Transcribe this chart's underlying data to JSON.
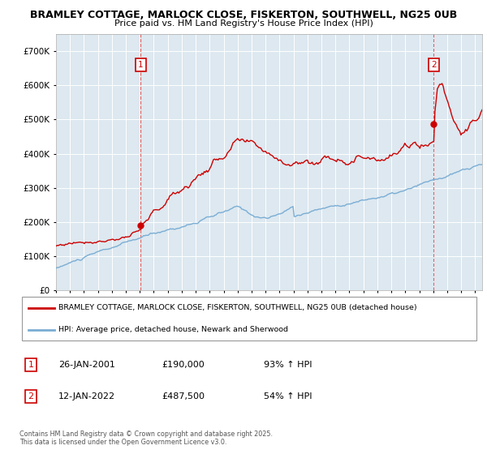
{
  "title1": "BRAMLEY COTTAGE, MARLOCK CLOSE, FISKERTON, SOUTHWELL, NG25 0UB",
  "title2": "Price paid vs. HM Land Registry's House Price Index (HPI)",
  "bg_color": "#dde8f0",
  "grid_color": "#ffffff",
  "red_color": "#cc0000",
  "blue_color": "#7aadd4",
  "ylim": [
    0,
    750000
  ],
  "yticks": [
    0,
    100000,
    200000,
    300000,
    400000,
    500000,
    600000,
    700000
  ],
  "legend_label_red": "BRAMLEY COTTAGE, MARLOCK CLOSE, FISKERTON, SOUTHWELL, NG25 0UB (detached house)",
  "legend_label_blue": "HPI: Average price, detached house, Newark and Sherwood",
  "annotation1_date": "26-JAN-2001",
  "annotation1_price": "£190,000",
  "annotation1_hpi": "93% ↑ HPI",
  "annotation2_date": "12-JAN-2022",
  "annotation2_price": "£487,500",
  "annotation2_hpi": "54% ↑ HPI",
  "footer": "Contains HM Land Registry data © Crown copyright and database right 2025.\nThis data is licensed under the Open Government Licence v3.0.",
  "sale1_x": 2001.07,
  "sale1_y": 190000,
  "sale2_x": 2022.04,
  "sale2_y": 487500,
  "xmin": 1995,
  "xmax": 2025.5
}
